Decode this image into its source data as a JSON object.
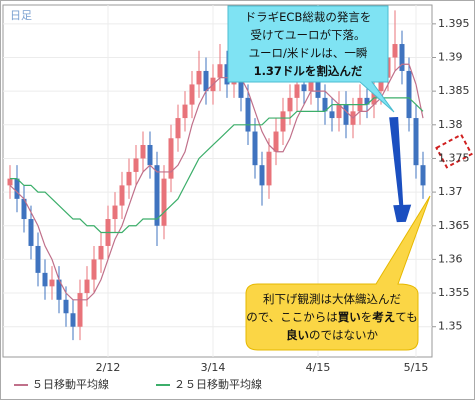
{
  "chart_data": {
    "type": "candlestick",
    "label": "日足",
    "categories": [
      null,
      null,
      null,
      null,
      null,
      null,
      null,
      null,
      null,
      null,
      null,
      null,
      null,
      null,
      "2/12",
      null,
      null,
      null,
      null,
      null,
      null,
      null,
      null,
      null,
      null,
      null,
      null,
      null,
      null,
      "3/14",
      null,
      null,
      null,
      null,
      null,
      null,
      null,
      null,
      null,
      null,
      null,
      null,
      null,
      null,
      "4/15",
      null,
      null,
      null,
      null,
      null,
      null,
      null,
      null,
      null,
      null,
      null,
      null,
      null,
      "5/15",
      null
    ],
    "open": [
      1.371,
      1.372,
      1.369,
      1.366,
      1.362,
      1.358,
      1.356,
      1.357,
      1.354,
      1.352,
      1.35,
      1.355,
      1.357,
      1.36,
      1.362,
      1.366,
      1.368,
      1.371,
      1.373,
      1.375,
      1.377,
      1.374,
      1.365,
      1.372,
      1.378,
      1.381,
      1.383,
      1.386,
      1.388,
      1.385,
      1.387,
      1.389,
      1.386,
      1.388,
      1.384,
      1.379,
      1.374,
      1.371,
      1.376,
      1.379,
      1.382,
      1.384,
      1.386,
      1.385,
      1.387,
      1.384,
      1.382,
      1.381,
      1.383,
      1.38,
      1.382,
      1.384,
      1.383,
      1.385,
      1.387,
      1.39,
      1.392,
      1.388,
      1.381,
      1.374
    ],
    "high": [
      1.374,
      1.374,
      1.371,
      1.368,
      1.364,
      1.36,
      1.359,
      1.359,
      1.356,
      1.354,
      1.357,
      1.359,
      1.362,
      1.364,
      1.368,
      1.37,
      1.373,
      1.375,
      1.377,
      1.379,
      1.379,
      1.376,
      1.374,
      1.38,
      1.383,
      1.385,
      1.388,
      1.391,
      1.39,
      1.389,
      1.392,
      1.391,
      1.39,
      1.39,
      1.386,
      1.381,
      1.376,
      1.378,
      1.381,
      1.384,
      1.386,
      1.389,
      1.388,
      1.389,
      1.389,
      1.386,
      1.384,
      1.385,
      1.385,
      1.384,
      1.386,
      1.386,
      1.387,
      1.389,
      1.392,
      1.397,
      1.394,
      1.39,
      1.383,
      1.376
    ],
    "low": [
      1.369,
      1.367,
      1.364,
      1.36,
      1.356,
      1.354,
      1.354,
      1.352,
      1.35,
      1.348,
      1.348,
      1.353,
      1.355,
      1.358,
      1.36,
      1.364,
      1.366,
      1.369,
      1.371,
      1.373,
      1.372,
      1.362,
      1.363,
      1.37,
      1.376,
      1.379,
      1.381,
      1.384,
      1.383,
      1.383,
      1.385,
      1.384,
      1.384,
      1.382,
      1.377,
      1.372,
      1.368,
      1.369,
      1.374,
      1.377,
      1.38,
      1.382,
      1.383,
      1.383,
      1.382,
      1.38,
      1.379,
      1.379,
      1.378,
      1.378,
      1.38,
      1.381,
      1.381,
      1.383,
      1.385,
      1.388,
      1.386,
      1.379,
      1.372,
      1.369
    ],
    "close": [
      1.372,
      1.369,
      1.366,
      1.362,
      1.358,
      1.356,
      1.357,
      1.354,
      1.352,
      1.35,
      1.355,
      1.357,
      1.36,
      1.362,
      1.366,
      1.368,
      1.371,
      1.373,
      1.375,
      1.377,
      1.374,
      1.365,
      1.372,
      1.378,
      1.381,
      1.383,
      1.386,
      1.388,
      1.385,
      1.387,
      1.389,
      1.386,
      1.388,
      1.384,
      1.379,
      1.374,
      1.371,
      1.376,
      1.379,
      1.382,
      1.384,
      1.386,
      1.385,
      1.387,
      1.384,
      1.382,
      1.381,
      1.383,
      1.38,
      1.382,
      1.384,
      1.383,
      1.385,
      1.387,
      1.39,
      1.392,
      1.388,
      1.381,
      1.374,
      1.371
    ],
    "up_color": "#e8737a",
    "down_color": "#3f73bf",
    "series": [
      {
        "name": "５日移動平均線",
        "color": "#c0708a",
        "values": [
          1.371,
          1.37,
          1.369,
          1.367,
          1.365,
          1.362,
          1.36,
          1.357,
          1.355,
          1.354,
          1.354,
          1.354,
          1.355,
          1.357,
          1.36,
          1.363,
          1.365,
          1.368,
          1.371,
          1.373,
          1.374,
          1.373,
          1.373,
          1.373,
          1.374,
          1.376,
          1.38,
          1.383,
          1.385,
          1.386,
          1.387,
          1.387,
          1.387,
          1.387,
          1.385,
          1.382,
          1.379,
          1.377,
          1.376,
          1.376,
          1.378,
          1.381,
          1.383,
          1.385,
          1.385,
          1.385,
          1.384,
          1.383,
          1.382,
          1.381,
          1.382,
          1.382,
          1.383,
          1.384,
          1.386,
          1.388,
          1.389,
          1.389,
          1.386,
          1.381
        ]
      },
      {
        "name": "２５日移動平均線",
        "color": "#3cae6a",
        "values": [
          1.372,
          1.372,
          1.371,
          1.371,
          1.37,
          1.37,
          1.369,
          1.368,
          1.367,
          1.366,
          1.366,
          1.365,
          1.365,
          1.364,
          1.364,
          1.364,
          1.364,
          1.365,
          1.365,
          1.366,
          1.366,
          1.366,
          1.367,
          1.368,
          1.369,
          1.371,
          1.373,
          1.375,
          1.376,
          1.377,
          1.378,
          1.379,
          1.38,
          1.38,
          1.38,
          1.38,
          1.38,
          1.381,
          1.381,
          1.381,
          1.381,
          1.382,
          1.382,
          1.382,
          1.382,
          1.382,
          1.383,
          1.383,
          1.383,
          1.383,
          1.383,
          1.383,
          1.384,
          1.384,
          1.384,
          1.384,
          1.384,
          1.384,
          1.383,
          1.382
        ]
      }
    ],
    "ylim": [
      1.3455,
      1.3978
    ],
    "yticks": [
      1.35,
      1.355,
      1.36,
      1.365,
      1.37,
      1.375,
      1.38,
      1.385,
      1.39,
      1.395
    ],
    "grid": true,
    "annotations": [
      {
        "lines": [
          [
            {
              "text": "ドラギECB総裁の発言を"
            }
          ],
          [
            {
              "text": "受けてユーロが下落。"
            }
          ],
          [
            {
              "text": "ユーロ/米ドルは、一瞬"
            }
          ],
          [
            {
              "text": "1.37ドルを割込んだ",
              "bold": true
            }
          ]
        ]
      },
      {
        "lines": [
          [
            {
              "text": "利下げ観測は大体織込んだ"
            }
          ],
          [
            {
              "text": "ので、ここからは"
            },
            {
              "text": "買い",
              "bold": true
            },
            {
              "text": "を"
            },
            {
              "text": "考え",
              "bold": true
            },
            {
              "text": "ても"
            }
          ],
          [
            {
              "text": "良い",
              "bold": true
            },
            {
              "text": "のではないか"
            }
          ]
        ]
      }
    ]
  }
}
